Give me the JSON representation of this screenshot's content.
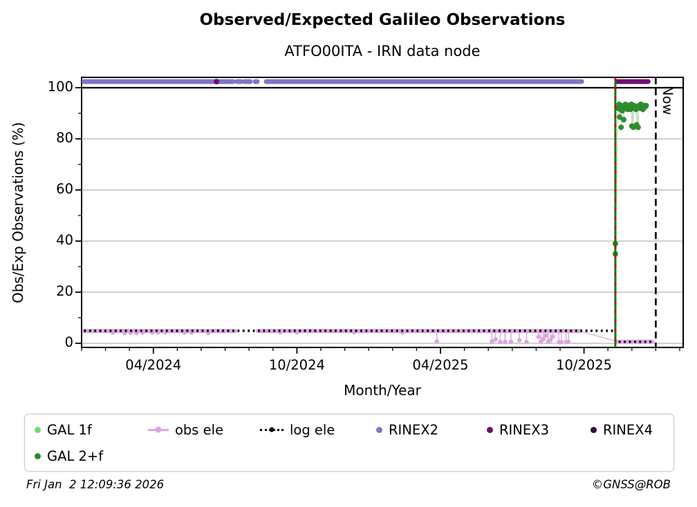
{
  "title": "Observed/Expected Galileo Observations",
  "subtitle": "ATFO00ITA - IRN data node",
  "footer": {
    "timestamp": "Fri Jan  2 12:09:36 2026",
    "copyright": "©GNSS@ROB"
  },
  "colors": {
    "gal_1f": "#6fdc6f",
    "gal_2f": "#2f8b2f",
    "obs_ele": "#d9a6dd",
    "log_ele": "#000000",
    "rinex2": "#8176c4",
    "rinex3": "#6e0d74",
    "rinex4": "#30103a",
    "grid": "#b3b3b3",
    "event_line_green": "#007f00",
    "event_line_red": "#cc0000",
    "now_line": "#000000"
  },
  "legend": {
    "items": [
      {
        "label": "GAL 1f",
        "marker": "dot",
        "color": "#6fdc6f",
        "row": 0,
        "col": 0
      },
      {
        "label": "obs ele",
        "marker": "line-dot",
        "color": "#d9a6dd",
        "row": 0,
        "col": 1
      },
      {
        "label": "log ele",
        "marker": "dotted-line-dot",
        "color": "#000000",
        "row": 0,
        "col": 2
      },
      {
        "label": "RINEX2",
        "marker": "dot",
        "color": "#8176c4",
        "row": 0,
        "col": 3
      },
      {
        "label": "RINEX3",
        "marker": "dot",
        "color": "#6e0d74",
        "row": 0,
        "col": 4
      },
      {
        "label": "RINEX4",
        "marker": "dot",
        "color": "#30103a",
        "row": 0,
        "col": 5
      },
      {
        "label": "GAL 2+f",
        "marker": "dot",
        "color": "#2f8b2f",
        "row": 1,
        "col": 0
      }
    ]
  },
  "chart_data": {
    "type": "scatter",
    "title": "Observed/Expected Galileo Observations",
    "subtitle": "ATFO00ITA - IRN data node",
    "xlabel": "Month/Year",
    "ylabel": "Obs/Exp Observations (%)",
    "ylim": [
      0,
      100
    ],
    "yticks": [
      0,
      20,
      40,
      60,
      80,
      100
    ],
    "yminor": [
      10,
      30,
      50,
      70,
      90
    ],
    "grid": "horizontal-gray",
    "hline_at_100": true,
    "x_axis": {
      "unit": "months since 2024-01",
      "months_total": 25,
      "major_months": [
        3,
        9,
        15,
        21
      ],
      "ticks": [
        {
          "m": 3,
          "label": "04/2024"
        },
        {
          "m": 9,
          "label": "10/2024"
        },
        {
          "m": 15,
          "label": "04/2025"
        },
        {
          "m": 21,
          "label": "10/2025"
        }
      ]
    },
    "event_line": {
      "m": 22.31,
      "style": "green-solid-red-dashed"
    },
    "now_line": {
      "m": 24.0,
      "label": "Now",
      "style": "black-dashed"
    },
    "series": [
      {
        "name": "obs ele",
        "type": "baseline-with-dips",
        "color": "#d9a6dd",
        "baseline_value": 4.8,
        "thickness": 6,
        "baseline_segments": [
          [
            0.1,
            6.42
          ],
          [
            7.37,
            20.82
          ]
        ],
        "tail": {
          "value": 0.6,
          "segments": [
            [
              22.42,
              23.85
            ]
          ]
        },
        "connector": [
          [
            20.82,
            4.8
          ],
          [
            22.42,
            0.6
          ]
        ],
        "dips": [
          [
            1.3,
            4.2
          ],
          [
            1.8,
            4.0
          ],
          [
            2.05,
            4.1
          ],
          [
            2.3,
            4.0
          ],
          [
            2.55,
            4.2
          ],
          [
            2.95,
            4.2
          ],
          [
            3.2,
            4.3
          ],
          [
            3.5,
            4.3
          ],
          [
            4.3,
            4.2
          ],
          [
            4.6,
            4.2
          ],
          [
            5.3,
            4.0
          ],
          [
            8.3,
            4.3
          ],
          [
            9.0,
            4.3
          ],
          [
            11.4,
            4.3
          ],
          [
            13.4,
            4.3
          ],
          [
            14.85,
            0.7
          ],
          [
            17.15,
            0.7
          ],
          [
            17.3,
            1.5
          ],
          [
            17.5,
            0.5
          ],
          [
            17.7,
            0.6
          ],
          [
            17.95,
            0.6
          ],
          [
            18.3,
            1.2
          ],
          [
            18.6,
            0.5
          ],
          [
            19.1,
            2.5
          ],
          [
            19.2,
            0.6
          ],
          [
            19.3,
            1.6
          ],
          [
            19.4,
            3.0
          ],
          [
            19.5,
            0.6
          ],
          [
            19.6,
            1.2
          ],
          [
            19.7,
            2.6
          ],
          [
            19.95,
            0.5
          ],
          [
            20.05,
            0.5
          ],
          [
            20.25,
            0.5
          ],
          [
            20.35,
            0.6
          ]
        ]
      },
      {
        "name": "log ele",
        "type": "dotted-line",
        "color": "#000000",
        "width": 3.4,
        "segments": [
          {
            "value": 4.9,
            "from": 0.1,
            "to": 22.3
          },
          {
            "value": 0.6,
            "from": 22.45,
            "to": 23.95
          }
        ]
      },
      {
        "name": "RINEX2",
        "type": "band",
        "color": "#8176c4",
        "value": 102.4,
        "thickness": 7,
        "segments": [
          [
            0.1,
            6.33
          ],
          [
            6.5,
            6.68
          ],
          [
            6.82,
            7.05
          ],
          [
            7.26,
            7.34
          ],
          [
            7.72,
            20.9
          ]
        ],
        "points": []
      },
      {
        "name": "RINEX3",
        "type": "band",
        "color": "#6e0d74",
        "value": 102.4,
        "thickness": 7,
        "segments": [
          [
            22.38,
            23.68
          ]
        ],
        "points": [
          [
            5.64,
            102.4
          ]
        ]
      },
      {
        "name": "RINEX4",
        "type": "band",
        "color": "#30103a",
        "value": 102.4,
        "thickness": 7,
        "segments": [],
        "points": []
      },
      {
        "name": "GAL 1f",
        "type": "scatter",
        "color": "#6fdc6f",
        "radius": 3.6,
        "connect": false,
        "points": []
      },
      {
        "name": "GAL 2+f",
        "type": "scatter",
        "color": "#2f8b2f",
        "radius": 4,
        "connect": true,
        "connect_color": "#bcdebc",
        "points": [
          [
            22.31,
            39
          ],
          [
            22.31,
            35
          ],
          [
            22.42,
            92
          ],
          [
            22.47,
            93.5
          ],
          [
            22.49,
            88.5
          ],
          [
            22.52,
            91.5
          ],
          [
            22.55,
            84.5
          ],
          [
            22.57,
            92.5
          ],
          [
            22.6,
            91
          ],
          [
            22.63,
            93
          ],
          [
            22.66,
            87.5
          ],
          [
            22.7,
            92.5
          ],
          [
            22.74,
            93.5
          ],
          [
            22.78,
            92
          ],
          [
            22.82,
            91.5
          ],
          [
            22.86,
            93
          ],
          [
            22.9,
            92.5
          ],
          [
            22.94,
            91.5
          ],
          [
            22.98,
            93.5
          ],
          [
            23.0,
            85
          ],
          [
            23.03,
            92
          ],
          [
            23.06,
            84.5
          ],
          [
            23.1,
            93
          ],
          [
            23.13,
            92.5
          ],
          [
            23.17,
            91.5
          ],
          [
            23.2,
            85.5
          ],
          [
            23.23,
            92.5
          ],
          [
            23.26,
            84.5
          ],
          [
            23.3,
            93
          ],
          [
            23.34,
            92
          ],
          [
            23.38,
            93.5
          ],
          [
            23.42,
            92.5
          ],
          [
            23.46,
            91.5
          ],
          [
            23.5,
            93
          ],
          [
            23.55,
            92.5
          ],
          [
            23.6,
            93
          ]
        ]
      }
    ]
  }
}
